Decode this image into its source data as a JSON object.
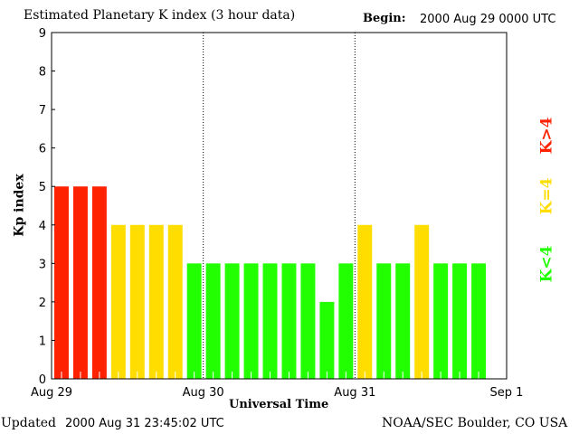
{
  "chart_data": {
    "type": "bar",
    "title": "Estimated Planetary K index (3 hour data)",
    "begin_label": "Begin:",
    "begin_value": "2000 Aug 29 0000 UTC",
    "ylabel": "Kp index",
    "xlabel": "Universal Time",
    "ylim": [
      0,
      9
    ],
    "yticks": [
      "0",
      "1",
      "2",
      "3",
      "4",
      "5",
      "6",
      "7",
      "8",
      "9"
    ],
    "xticks": [
      "Aug 29",
      "Aug 30",
      "Aug 31",
      "Sep 1"
    ],
    "slots": 24,
    "values": [
      5,
      5,
      5,
      4,
      4,
      4,
      4,
      3,
      3,
      3,
      3,
      3,
      3,
      3,
      2,
      3,
      4,
      3,
      3,
      4,
      3,
      3,
      3
    ],
    "colors": {
      "high": "#ff2200",
      "equal": "#ffdd00",
      "low": "#22ff00"
    },
    "legend": [
      {
        "label": "K>4",
        "color": "#ff2200"
      },
      {
        "label": "K=4",
        "color": "#ffdd00"
      },
      {
        "label": "K<4",
        "color": "#22ff00"
      }
    ]
  },
  "footer": {
    "updated_label": "Updated",
    "updated_value": "2000 Aug 31 23:45:02 UTC",
    "source": "NOAA/SEC Boulder, CO USA"
  }
}
